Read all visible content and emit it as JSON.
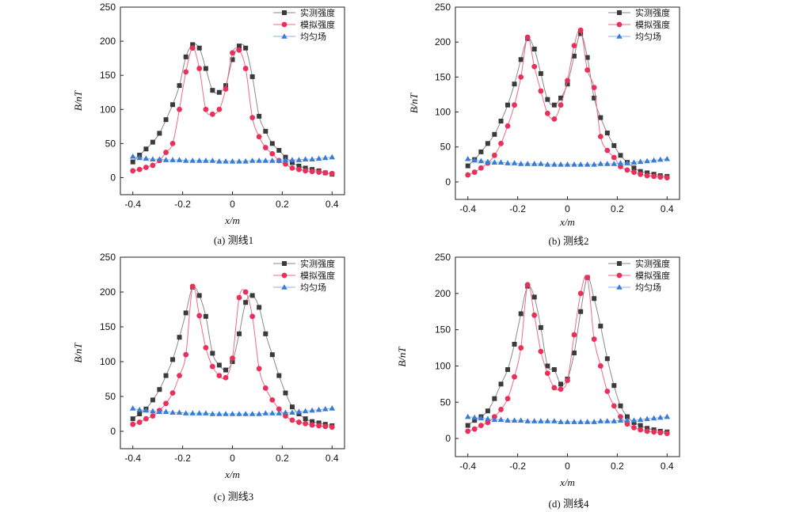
{
  "style": {
    "measured_color": "#3a3a3a",
    "measured_line_color": "#8a8a8a",
    "simulated_color": "#e8305a",
    "simulated_line_color": "#ee6a8a",
    "uniform_color": "#3a7bd5",
    "uniform_line_color": "#8ab4ea",
    "measured_marker": "square",
    "simulated_marker": "circle",
    "uniform_marker": "triangle"
  },
  "chart_data": [
    {
      "type": "line",
      "caption": "(a) 测线1",
      "xlabel": "x/m",
      "ylabel": "B/nT",
      "xlim": [
        -0.45,
        0.45
      ],
      "ylim": [
        -25,
        250
      ],
      "xticks": [
        "-0.4",
        "-0.2",
        "0",
        "0.2",
        "0.4"
      ],
      "yticks": [
        "0",
        "50",
        "100",
        "150",
        "200",
        "250"
      ],
      "legend_position": "top-right",
      "series": [
        {
          "name": "实测强度",
          "marker": "square",
          "x": [
            -0.4,
            -0.373,
            -0.347,
            -0.32,
            -0.293,
            -0.267,
            -0.24,
            -0.213,
            -0.187,
            -0.16,
            -0.133,
            -0.107,
            -0.08,
            -0.053,
            -0.027,
            0,
            0.027,
            0.053,
            0.08,
            0.107,
            0.133,
            0.16,
            0.187,
            0.213,
            0.24,
            0.267,
            0.293,
            0.32,
            0.347,
            0.373,
            0.4
          ],
          "y": [
            23,
            33,
            42,
            52,
            65,
            85,
            107,
            135,
            177,
            195,
            190,
            160,
            128,
            125,
            135,
            173,
            193,
            190,
            148,
            90,
            68,
            50,
            40,
            30,
            22,
            17,
            14,
            12,
            10,
            7,
            5
          ]
        },
        {
          "name": "模拟强度",
          "marker": "circle",
          "x": [
            -0.4,
            -0.373,
            -0.347,
            -0.32,
            -0.293,
            -0.267,
            -0.24,
            -0.213,
            -0.187,
            -0.16,
            -0.133,
            -0.107,
            -0.08,
            -0.053,
            -0.027,
            0,
            0.027,
            0.053,
            0.08,
            0.107,
            0.133,
            0.16,
            0.187,
            0.213,
            0.24,
            0.267,
            0.293,
            0.32,
            0.347,
            0.373,
            0.4
          ],
          "y": [
            10,
            12,
            15,
            18,
            25,
            37,
            50,
            100,
            155,
            190,
            160,
            100,
            93,
            100,
            130,
            183,
            187,
            160,
            88,
            60,
            44,
            35,
            25,
            20,
            14,
            12,
            10,
            9,
            8,
            7,
            6
          ]
        },
        {
          "name": "均匀场",
          "marker": "triangle",
          "x": [
            -0.4,
            -0.373,
            -0.347,
            -0.32,
            -0.293,
            -0.267,
            -0.24,
            -0.213,
            -0.187,
            -0.16,
            -0.133,
            -0.107,
            -0.08,
            -0.053,
            -0.027,
            0,
            0.027,
            0.053,
            0.08,
            0.107,
            0.133,
            0.16,
            0.187,
            0.213,
            0.24,
            0.267,
            0.293,
            0.32,
            0.347,
            0.373,
            0.4
          ],
          "y": [
            31,
            29,
            28,
            27,
            27,
            26,
            26,
            26,
            25,
            25,
            25,
            25,
            25,
            24,
            24,
            24,
            24,
            24,
            25,
            25,
            25,
            25,
            25,
            26,
            26,
            26,
            27,
            27,
            28,
            29,
            30
          ]
        }
      ]
    },
    {
      "type": "line",
      "caption": "(b) 测线2",
      "xlabel": "x/m",
      "ylabel": "B/nT",
      "xlim": [
        -0.45,
        0.45
      ],
      "ylim": [
        -25,
        250
      ],
      "xticks": [
        "-0.4",
        "-0.2",
        "0",
        "0.2",
        "0.4"
      ],
      "yticks": [
        "0",
        "50",
        "100",
        "150",
        "200",
        "250"
      ],
      "legend_position": "top-right",
      "series": [
        {
          "name": "实测强度",
          "marker": "square",
          "x": [
            -0.4,
            -0.373,
            -0.347,
            -0.32,
            -0.293,
            -0.267,
            -0.24,
            -0.213,
            -0.187,
            -0.16,
            -0.133,
            -0.107,
            -0.08,
            -0.053,
            -0.027,
            0,
            0.027,
            0.053,
            0.08,
            0.107,
            0.133,
            0.16,
            0.187,
            0.213,
            0.24,
            0.267,
            0.293,
            0.32,
            0.347,
            0.373,
            0.4
          ],
          "y": [
            23,
            32,
            43,
            55,
            68,
            87,
            110,
            140,
            175,
            205,
            190,
            155,
            118,
            110,
            120,
            140,
            180,
            212,
            178,
            120,
            92,
            70,
            52,
            38,
            28,
            20,
            15,
            13,
            11,
            9,
            8
          ]
        },
        {
          "name": "模拟强度",
          "marker": "circle",
          "x": [
            -0.4,
            -0.373,
            -0.347,
            -0.32,
            -0.293,
            -0.267,
            -0.24,
            -0.213,
            -0.187,
            -0.16,
            -0.133,
            -0.107,
            -0.08,
            -0.053,
            -0.027,
            0,
            0.027,
            0.053,
            0.08,
            0.107,
            0.133,
            0.16,
            0.187,
            0.213,
            0.24,
            0.267,
            0.293,
            0.32,
            0.347,
            0.373,
            0.4
          ],
          "y": [
            10,
            14,
            20,
            27,
            38,
            55,
            80,
            110,
            150,
            207,
            165,
            130,
            98,
            90,
            110,
            145,
            195,
            217,
            160,
            135,
            65,
            45,
            35,
            22,
            17,
            14,
            11,
            9,
            8,
            7,
            6
          ]
        },
        {
          "name": "均匀场",
          "marker": "triangle",
          "x": [
            -0.4,
            -0.373,
            -0.347,
            -0.32,
            -0.293,
            -0.267,
            -0.24,
            -0.213,
            -0.187,
            -0.16,
            -0.133,
            -0.107,
            -0.08,
            -0.053,
            -0.027,
            0,
            0.027,
            0.053,
            0.08,
            0.107,
            0.133,
            0.16,
            0.187,
            0.213,
            0.24,
            0.267,
            0.293,
            0.32,
            0.347,
            0.373,
            0.4
          ],
          "y": [
            33,
            31,
            30,
            29,
            28,
            28,
            27,
            27,
            26,
            26,
            26,
            26,
            25,
            25,
            25,
            25,
            25,
            25,
            25,
            25,
            26,
            26,
            26,
            27,
            27,
            28,
            29,
            30,
            31,
            32,
            33
          ]
        }
      ]
    },
    {
      "type": "line",
      "caption": "(c) 测线3",
      "xlabel": "x/m",
      "ylabel": "B/nT",
      "xlim": [
        -0.45,
        0.45
      ],
      "ylim": [
        -25,
        250
      ],
      "xticks": [
        "-0.4",
        "-0.2",
        "0",
        "0.2",
        "0.4"
      ],
      "yticks": [
        "0",
        "50",
        "100",
        "150",
        "200",
        "250"
      ],
      "legend_position": "top-right",
      "series": [
        {
          "name": "实测强度",
          "marker": "square",
          "x": [
            -0.4,
            -0.373,
            -0.347,
            -0.32,
            -0.293,
            -0.267,
            -0.24,
            -0.213,
            -0.187,
            -0.16,
            -0.133,
            -0.107,
            -0.08,
            -0.053,
            -0.027,
            0,
            0.027,
            0.053,
            0.08,
            0.107,
            0.133,
            0.16,
            0.187,
            0.213,
            0.24,
            0.267,
            0.293,
            0.32,
            0.347,
            0.373,
            0.4
          ],
          "y": [
            18,
            25,
            32,
            45,
            60,
            80,
            103,
            135,
            170,
            207,
            195,
            165,
            112,
            95,
            88,
            100,
            140,
            185,
            195,
            178,
            140,
            110,
            80,
            55,
            35,
            25,
            18,
            14,
            12,
            10,
            8
          ]
        },
        {
          "name": "模拟强度",
          "marker": "circle",
          "x": [
            -0.4,
            -0.373,
            -0.347,
            -0.32,
            -0.293,
            -0.267,
            -0.24,
            -0.213,
            -0.187,
            -0.16,
            -0.133,
            -0.107,
            -0.08,
            -0.053,
            -0.027,
            0,
            0.027,
            0.053,
            0.08,
            0.107,
            0.133,
            0.16,
            0.187,
            0.213,
            0.24,
            0.267,
            0.293,
            0.32,
            0.347,
            0.373,
            0.4
          ],
          "y": [
            10,
            13,
            18,
            22,
            30,
            40,
            55,
            80,
            110,
            208,
            166,
            120,
            93,
            80,
            77,
            105,
            192,
            200,
            165,
            90,
            62,
            45,
            32,
            22,
            16,
            13,
            11,
            9,
            8,
            7,
            6
          ]
        },
        {
          "name": "均匀场",
          "marker": "triangle",
          "x": [
            -0.4,
            -0.373,
            -0.347,
            -0.32,
            -0.293,
            -0.267,
            -0.24,
            -0.213,
            -0.187,
            -0.16,
            -0.133,
            -0.107,
            -0.08,
            -0.053,
            -0.027,
            0,
            0.027,
            0.053,
            0.08,
            0.107,
            0.133,
            0.16,
            0.187,
            0.213,
            0.24,
            0.267,
            0.293,
            0.32,
            0.347,
            0.373,
            0.4
          ],
          "y": [
            33,
            31,
            30,
            29,
            28,
            28,
            27,
            27,
            26,
            26,
            26,
            26,
            25,
            25,
            25,
            25,
            25,
            25,
            25,
            25,
            26,
            26,
            26,
            27,
            27,
            28,
            29,
            30,
            31,
            32,
            33
          ]
        }
      ]
    },
    {
      "type": "line",
      "caption": "(d) 测线4",
      "xlabel": "x/m",
      "ylabel": "B/nT",
      "xlim": [
        -0.45,
        0.45
      ],
      "ylim": [
        -25,
        250
      ],
      "xticks": [
        "-0.4",
        "-0.2",
        "0",
        "0.2",
        "0.4"
      ],
      "yticks": [
        "0",
        "50",
        "100",
        "150",
        "200",
        "250"
      ],
      "legend_position": "top-right",
      "series": [
        {
          "name": "实测强度",
          "marker": "square",
          "x": [
            -0.4,
            -0.373,
            -0.347,
            -0.32,
            -0.293,
            -0.267,
            -0.24,
            -0.213,
            -0.187,
            -0.16,
            -0.133,
            -0.107,
            -0.08,
            -0.053,
            -0.027,
            0,
            0.027,
            0.053,
            0.08,
            0.107,
            0.133,
            0.16,
            0.187,
            0.213,
            0.24,
            0.267,
            0.293,
            0.32,
            0.347,
            0.373,
            0.4
          ],
          "y": [
            18,
            25,
            30,
            38,
            55,
            75,
            95,
            130,
            172,
            210,
            195,
            153,
            100,
            95,
            75,
            82,
            118,
            175,
            222,
            193,
            155,
            110,
            73,
            45,
            30,
            22,
            18,
            14,
            12,
            10,
            9
          ]
        },
        {
          "name": "模拟强度",
          "marker": "circle",
          "x": [
            -0.4,
            -0.373,
            -0.347,
            -0.32,
            -0.293,
            -0.267,
            -0.24,
            -0.213,
            -0.187,
            -0.16,
            -0.133,
            -0.107,
            -0.08,
            -0.053,
            -0.027,
            0,
            0.027,
            0.053,
            0.08,
            0.107,
            0.133,
            0.16,
            0.187,
            0.213,
            0.24,
            0.267,
            0.293,
            0.32,
            0.347,
            0.373,
            0.4
          ],
          "y": [
            10,
            13,
            18,
            22,
            30,
            40,
            55,
            85,
            125,
            212,
            170,
            120,
            90,
            70,
            68,
            80,
            143,
            200,
            222,
            137,
            100,
            65,
            45,
            30,
            20,
            15,
            12,
            10,
            9,
            8,
            7
          ]
        },
        {
          "name": "均匀场",
          "marker": "triangle",
          "x": [
            -0.4,
            -0.373,
            -0.347,
            -0.32,
            -0.293,
            -0.267,
            -0.24,
            -0.213,
            -0.187,
            -0.16,
            -0.133,
            -0.107,
            -0.08,
            -0.053,
            -0.027,
            0,
            0.027,
            0.053,
            0.08,
            0.107,
            0.133,
            0.16,
            0.187,
            0.213,
            0.24,
            0.267,
            0.293,
            0.32,
            0.347,
            0.373,
            0.4
          ],
          "y": [
            30,
            29,
            28,
            27,
            26,
            26,
            25,
            25,
            25,
            24,
            24,
            24,
            24,
            24,
            23,
            23,
            23,
            23,
            23,
            23,
            24,
            24,
            24,
            25,
            25,
            25,
            26,
            27,
            28,
            29,
            30
          ]
        }
      ]
    }
  ]
}
